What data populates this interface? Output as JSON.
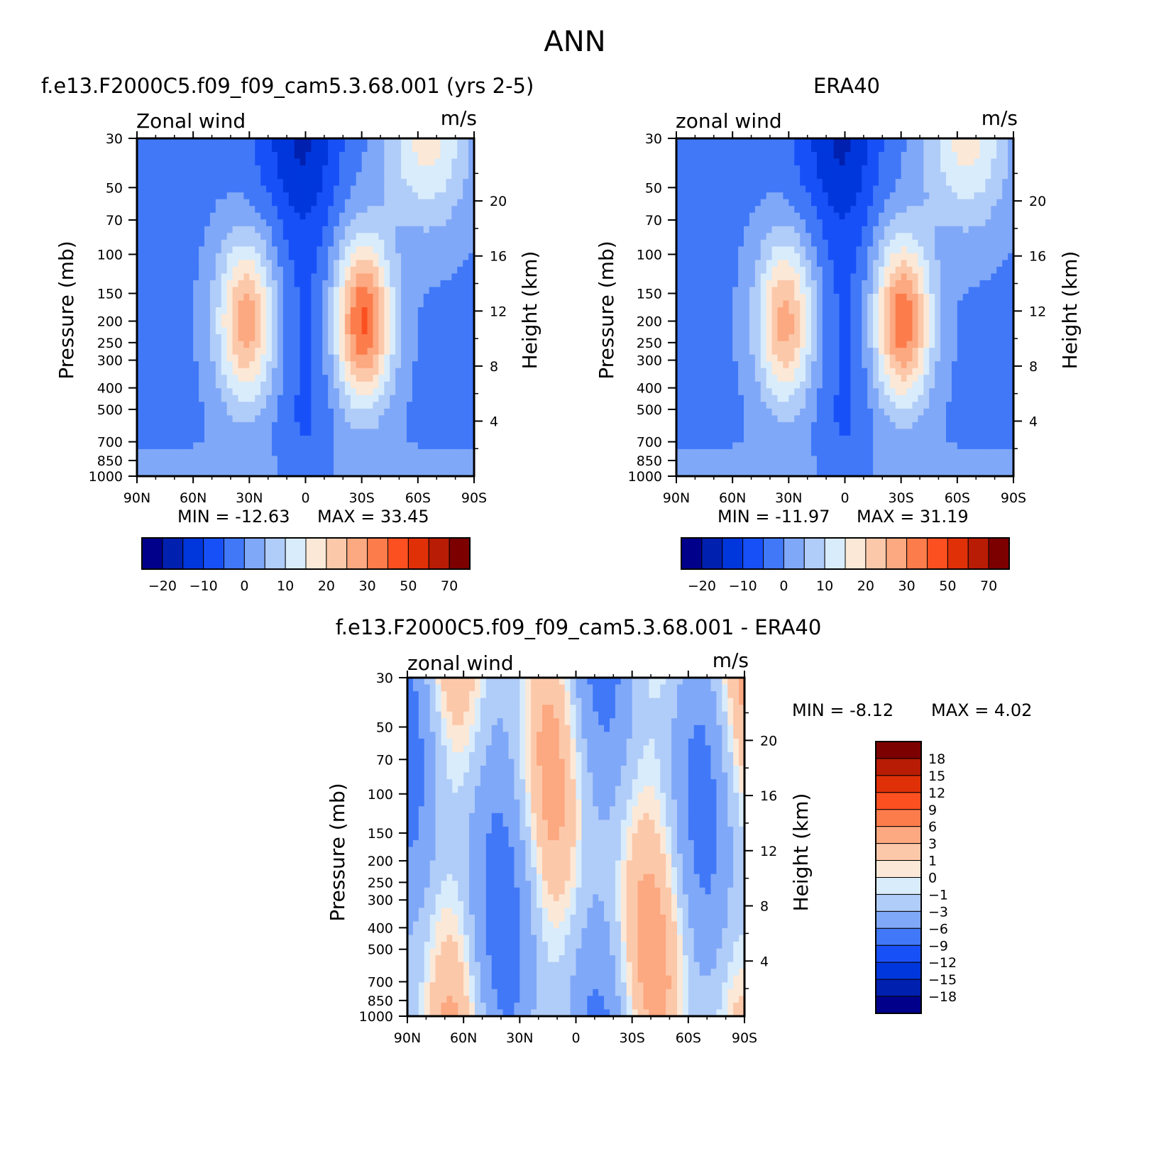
{
  "page_title": "ANN",
  "chart_data": [
    {
      "type": "contour",
      "title": "f.e13.F2000C5.f09_f09_cam5.3.68.001 (yrs 2-5)",
      "left_label": "Zonal wind",
      "right_label": "m/s",
      "ylabel": "Pressure (mb)",
      "ylabel_right": "Height (km)",
      "x_ticks": [
        "90N",
        "60N",
        "30N",
        "0",
        "30S",
        "60S",
        "90S"
      ],
      "x_range": [
        90,
        -90
      ],
      "y_ticks": [
        30,
        50,
        70,
        100,
        150,
        200,
        250,
        300,
        400,
        500,
        700,
        850,
        1000
      ],
      "y_range": [
        30,
        1000
      ],
      "y_scale": "log",
      "height_ticks": [
        4,
        8,
        12,
        16,
        20
      ],
      "min_text": "MIN = -12.63",
      "max_text": "MAX = 33.45",
      "min": -12.63,
      "max": 33.45,
      "jets": [
        {
          "lat": 32,
          "p": 200,
          "speed": 25
        },
        {
          "lat": -31,
          "p": 200,
          "speed": 33
        }
      ],
      "colorbar": {
        "orientation": "horizontal",
        "labels": [
          "-20",
          "-10",
          "0",
          "10",
          "20",
          "30",
          "50",
          "70"
        ]
      }
    },
    {
      "type": "contour",
      "title": "ERA40",
      "left_label": "zonal wind",
      "right_label": "m/s",
      "ylabel": "Pressure (mb)",
      "ylabel_right": "Height (km)",
      "x_ticks": [
        "90N",
        "60N",
        "30N",
        "0",
        "30S",
        "60S",
        "90S"
      ],
      "x_range": [
        90,
        -90
      ],
      "y_ticks": [
        30,
        50,
        70,
        100,
        150,
        200,
        250,
        300,
        400,
        500,
        700,
        850,
        1000
      ],
      "y_range": [
        30,
        1000
      ],
      "y_scale": "log",
      "height_ticks": [
        4,
        8,
        12,
        16,
        20
      ],
      "min_text": "MIN = -11.97",
      "max_text": "MAX = 31.19",
      "min": -11.97,
      "max": 31.19,
      "jets": [
        {
          "lat": 32,
          "p": 200,
          "speed": 24
        },
        {
          "lat": -31,
          "p": 200,
          "speed": 31
        }
      ],
      "colorbar": {
        "orientation": "horizontal",
        "labels": [
          "-20",
          "-10",
          "0",
          "10",
          "20",
          "30",
          "50",
          "70"
        ]
      }
    },
    {
      "type": "contour",
      "title": "f.e13.F2000C5.f09_f09_cam5.3.68.001 - ERA40",
      "left_label": "zonal wind",
      "right_label": "m/s",
      "ylabel": "Pressure (mb)",
      "ylabel_right": "Height (km)",
      "x_ticks": [
        "90N",
        "60N",
        "30N",
        "0",
        "30S",
        "60S",
        "90S"
      ],
      "x_range": [
        90,
        -90
      ],
      "y_ticks": [
        30,
        50,
        70,
        100,
        150,
        200,
        250,
        300,
        400,
        500,
        700,
        850,
        1000
      ],
      "y_range": [
        30,
        1000
      ],
      "y_scale": "log",
      "height_ticks": [
        4,
        8,
        12,
        16,
        20
      ],
      "min_text": "MIN = -8.12",
      "max_text": "MAX = 4.02",
      "min": -8.12,
      "max": 4.02,
      "colorbar": {
        "orientation": "vertical",
        "labels": [
          "18",
          "15",
          "12",
          "9",
          "6",
          "3",
          "1",
          "0",
          "-1",
          "-3",
          "-6",
          "-9",
          "-12",
          "-15",
          "-18"
        ]
      }
    }
  ],
  "colors": {
    "mean_scale": [
      "#00008b",
      "#0020b0",
      "#0037dc",
      "#1850f8",
      "#4078f8",
      "#80a8f8",
      "#b0ccf8",
      "#d8ecfc",
      "#fce8d6",
      "#fcc8aa",
      "#fca880",
      "#fc7c4c",
      "#fc5020",
      "#e03008",
      "#b81c04",
      "#7c0000"
    ],
    "diff_scale": [
      "#7c0000",
      "#b81c04",
      "#e03008",
      "#fc5020",
      "#fc7c4c",
      "#fca880",
      "#fcc8aa",
      "#fce8d6",
      "#d8ecfc",
      "#b0ccf8",
      "#80a8f8",
      "#4078f8",
      "#1850f8",
      "#0037dc",
      "#0020b0",
      "#00008b"
    ]
  }
}
